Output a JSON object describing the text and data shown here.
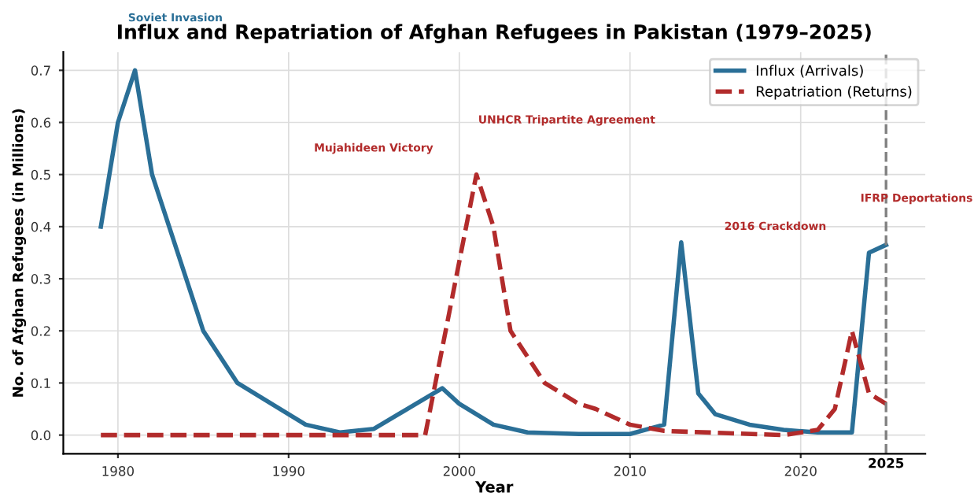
{
  "chart_data": {
    "type": "line",
    "title": "Influx and Repatriation of Afghan Refugees in Pakistan (1979–2025)",
    "xlabel": "Year",
    "ylabel": "No. of Afghan Refugees (in Millions)",
    "series": [
      {
        "name": "Influx (Arrivals)",
        "color": "#2a6f97",
        "line_style": "solid",
        "x": [
          1979,
          1980,
          1981,
          1982,
          1985,
          1987,
          1991,
          1993,
          1995,
          1999,
          2000,
          2002,
          2004,
          2007,
          2010,
          2012,
          2013,
          2014,
          2015,
          2017,
          2019,
          2021,
          2023,
          2024,
          2025
        ],
        "values": [
          0.4,
          0.6,
          0.7,
          0.5,
          0.2,
          0.1,
          0.02,
          0.005,
          0.012,
          0.09,
          0.06,
          0.02,
          0.005,
          0.002,
          0.002,
          0.02,
          0.37,
          0.08,
          0.04,
          0.02,
          0.01,
          0.005,
          0.005,
          0.35,
          0.365
        ]
      },
      {
        "name": "Repatriation (Returns)",
        "color": "#b22b2b",
        "line_style": "dashed",
        "x": [
          1979,
          1998,
          2001,
          2002,
          2003,
          2005,
          2007,
          2008,
          2010,
          2012,
          2019,
          2021,
          2022,
          2023,
          2024,
          2025
        ],
        "values": [
          0,
          0,
          0.5,
          0.4,
          0.2,
          0.1,
          0.06,
          0.05,
          0.02,
          0.008,
          0.0,
          0.01,
          0.05,
          0.2,
          0.08,
          0.06
        ]
      }
    ],
    "annotations": [
      "Soviet Invasion",
      "Mujahideen Victory",
      "UNHCR Tripartite Agreement",
      "2016 Crackdown",
      "IFRP Deportations"
    ],
    "ref_lines": [
      {
        "axis": "x",
        "value": 2025,
        "label": "2025",
        "color": "#808080",
        "line_style": "dashed"
      }
    ],
    "xlim": [
      1976.8,
      2027.3
    ],
    "xticks": [
      1980,
      1990,
      2000,
      2010,
      2020
    ],
    "ylim": [
      -0.036,
      0.735
    ],
    "yticks": [
      {
        "value": 0,
        "label": "0.0"
      },
      0.1,
      0.2,
      0.3,
      0.4,
      0.5,
      0.6,
      0.7
    ],
    "grid": true,
    "legend": "top right"
  }
}
